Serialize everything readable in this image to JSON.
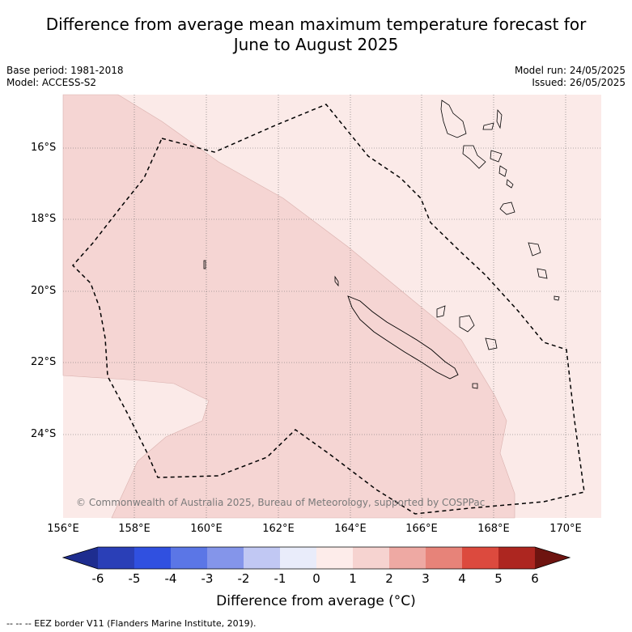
{
  "title_line1": "Difference from average mean maximum temperature forecast for",
  "title_line2": "June to August 2025",
  "meta_left": {
    "base_period": "Base period: 1981-2018",
    "model": "Model: ACCESS-S2"
  },
  "meta_right": {
    "model_run": "Model run: 24/05/2025",
    "issued": "Issued: 26/05/2025"
  },
  "lat_labels": [
    "16°S",
    "18°S",
    "20°S",
    "22°S",
    "24°S"
  ],
  "lon_labels": [
    "156°E",
    "158°E",
    "160°E",
    "162°E",
    "164°E",
    "166°E",
    "168°E",
    "170°E"
  ],
  "copyright": "© Commonwealth of Australia 2025, Bureau of Meteorology, supported by COSPPac",
  "colorbar": {
    "ticks": [
      "-6",
      "-5",
      "-4",
      "-3",
      "-2",
      "-1",
      "0",
      "1",
      "2",
      "3",
      "4",
      "5",
      "6"
    ],
    "colors": [
      "#1e2d8f",
      "#2a3fb7",
      "#3050e0",
      "#5b76e6",
      "#8495ea",
      "#c1c8f3",
      "#e9ecfa",
      "#fdecea",
      "#f6d3d0",
      "#eea9a3",
      "#e78379",
      "#dc4a3e",
      "#ad2620",
      "#6e1410"
    ],
    "label": "Difference from average (°C)"
  },
  "legend_note": "-- -- -- EEZ border V11 (Flanders Marine Institute, 2019).",
  "colors": {
    "light_anomaly": "#fbeae8",
    "medium_anomaly": "#f5d5d3"
  }
}
